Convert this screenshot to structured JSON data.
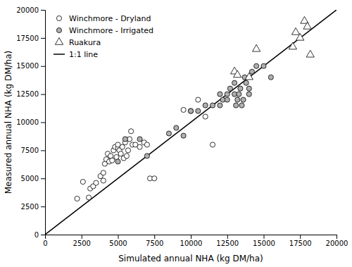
{
  "chart_data": {
    "type": "scatter",
    "xlabel": "Simulated annual NHA (kg DM/ha)",
    "ylabel": "Measured annual NHA (kg DM/ha)",
    "xlim": [
      0,
      20000
    ],
    "ylim": [
      0,
      20000
    ],
    "xticks": [
      0,
      2500,
      5000,
      7500,
      10000,
      12500,
      15000,
      17500,
      20000
    ],
    "yticks": [
      0,
      2500,
      5000,
      7500,
      10000,
      12500,
      15000,
      17500,
      20000
    ],
    "legend": "upper left",
    "series": [
      {
        "name": "Winchmore - Dryland",
        "color": "white",
        "marker": "circle",
        "x": [
          2200,
          2600,
          3000,
          3100,
          3300,
          3500,
          3800,
          4000,
          4000,
          4100,
          4200,
          4300,
          4400,
          4500,
          4600,
          4700,
          4800,
          4900,
          5000,
          5000,
          5100,
          5200,
          5300,
          5400,
          5500,
          5600,
          5700,
          5800,
          5900,
          6000,
          6200,
          6500,
          6800,
          7000,
          7200,
          7500,
          9500,
          10000,
          10500,
          11000,
          11500
        ],
        "values": [
          3200,
          4700,
          3300,
          4100,
          4300,
          4600,
          5200,
          4800,
          5500,
          6300,
          6700,
          7200,
          6500,
          7000,
          6600,
          7500,
          7800,
          6900,
          7700,
          8000,
          7500,
          7200,
          7800,
          6800,
          8200,
          7000,
          7500,
          8500,
          9200,
          8000,
          8000,
          7800,
          8200,
          8000,
          5000,
          5000,
          11100,
          11000,
          12000,
          10500,
          8000
        ]
      },
      {
        "name": "Winchmore - Irrigated",
        "color": "#b0b0b0",
        "marker": "circle",
        "x": [
          5000,
          5500,
          6500,
          7000,
          8500,
          9000,
          10000,
          10500,
          11000,
          11500,
          12000,
          12000,
          12200,
          12500,
          12500,
          12700,
          13000,
          13000,
          13100,
          13200,
          13300,
          13400,
          13500,
          13600,
          13700,
          13800,
          14000,
          14200,
          14500,
          15000,
          15500,
          14000,
          9500
        ],
        "values": [
          6500,
          8500,
          8500,
          7000,
          9000,
          9500,
          11000,
          11000,
          11500,
          11500,
          12500,
          11500,
          12000,
          12000,
          12500,
          13000,
          12500,
          13500,
          11500,
          12000,
          12500,
          13000,
          11500,
          12000,
          14000,
          13500,
          13000,
          14500,
          15000,
          15000,
          14000,
          12500,
          8800
        ]
      },
      {
        "name": "Ruakura",
        "color": "white",
        "marker": "triangle",
        "x": [
          13000,
          13200,
          14000,
          14500,
          17000,
          17200,
          17500,
          17800,
          18000,
          18200
        ],
        "values": [
          14500,
          14200,
          14000,
          16500,
          16700,
          18000,
          17500,
          19000,
          18500,
          16000
        ]
      },
      {
        "name": "1:1 line",
        "type": "line",
        "color": "black",
        "x": [
          0,
          20000
        ],
        "values": [
          0,
          20000
        ]
      }
    ]
  }
}
